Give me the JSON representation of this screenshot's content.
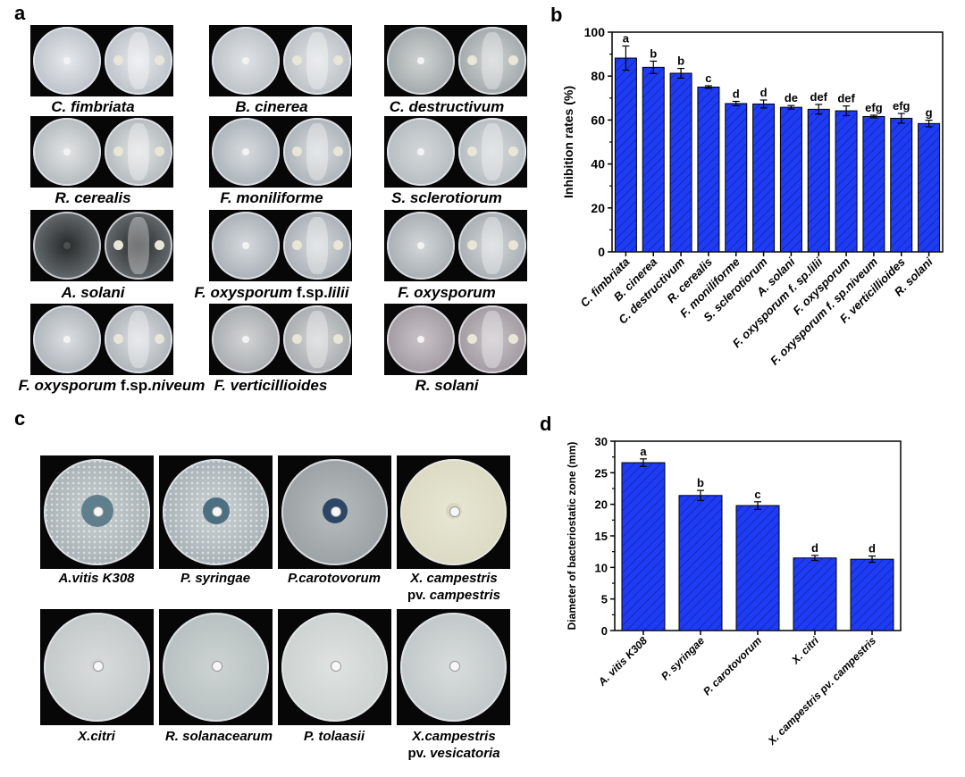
{
  "panels": {
    "a": "a",
    "b": "b",
    "c": "c",
    "d": "d"
  },
  "fungi_captions": [
    {
      "genus": "C.",
      "species": "fimbriata",
      "suffix": ""
    },
    {
      "genus": "B.",
      "species": "cinerea",
      "suffix": ""
    },
    {
      "genus": "C.",
      "species": "destructivum",
      "suffix": ""
    },
    {
      "genus": "R.",
      "species": "cerealis",
      "suffix": ""
    },
    {
      "genus": "F.",
      "species": "moniliforme",
      "suffix": ""
    },
    {
      "genus": "S.",
      "species": "sclerotiorum",
      "suffix": ""
    },
    {
      "genus": "A.",
      "species": "solani",
      "suffix": ""
    },
    {
      "genus": "F.",
      "species": "oxysporum",
      "suffix": "f.sp.",
      "forma": "lilii"
    },
    {
      "genus": "F.",
      "species": "oxysporum",
      "suffix": ""
    },
    {
      "genus": "F.",
      "species": "oxysporum",
      "suffix": "f.sp.",
      "forma": "niveum"
    },
    {
      "genus": "F.",
      "species": "verticillioides",
      "suffix": ""
    },
    {
      "genus": "R.",
      "species": "solani",
      "suffix": ""
    }
  ],
  "bacteria_captions": [
    {
      "line1": "A.vitis K308",
      "line2": ""
    },
    {
      "line1": "P. syringae",
      "line2": ""
    },
    {
      "line1": "P.carotovorum",
      "line2": ""
    },
    {
      "line1": "X. campestris",
      "line2_plain": "pv. ",
      "line2_italic": "campestris"
    },
    {
      "line1": "X.citri",
      "line2": ""
    },
    {
      "line1": "R. solanacearum",
      "line2": ""
    },
    {
      "line1": "P. tolaasii",
      "line2": ""
    },
    {
      "line1": "X.campestris",
      "line2_plain": "pv. ",
      "line2_italic": "vesicatoria"
    }
  ],
  "chart_data": [
    {
      "type": "bar",
      "panel": "b",
      "ylabel": "Inhibition rates (%)",
      "ylim": [
        0,
        100
      ],
      "yticks": [
        0,
        20,
        40,
        60,
        80,
        100
      ],
      "categories": [
        "C. fimbriata",
        "B. cinerea",
        "C. destructivum",
        "R. cerealis",
        "F. moniliforme",
        "S. sclerotiorum",
        "A. solani",
        "F. oxysporum f. sp.lilii",
        "F. oxysporum",
        "F. oxysporum f. sp.niveum",
        "F. verticillioides",
        "R. solani"
      ],
      "values": [
        88.2,
        84.0,
        81.3,
        75.0,
        67.5,
        67.3,
        65.8,
        64.9,
        64.2,
        61.6,
        60.8,
        58.4
      ],
      "errors": [
        5.5,
        2.8,
        2.2,
        0.6,
        1.0,
        1.8,
        0.8,
        2.2,
        2.2,
        0.6,
        2.2,
        1.5
      ],
      "letters": [
        "a",
        "b",
        "b",
        "c",
        "d",
        "d",
        "de",
        "def",
        "def",
        "efg",
        "efg",
        "g"
      ],
      "bar_color": "#1f3cf5"
    },
    {
      "type": "bar",
      "panel": "d",
      "ylabel": "Diameter of bacteriostatic zone (mm)",
      "ylim": [
        0,
        30
      ],
      "yticks": [
        0,
        5,
        10,
        15,
        20,
        25,
        30
      ],
      "categories": [
        "A. vitis K308",
        "P. syringae",
        "P. carotovorum",
        "X. citri",
        "X. campestris pv. campestris"
      ],
      "values": [
        26.6,
        21.4,
        19.8,
        11.5,
        11.3
      ],
      "errors": [
        0.6,
        0.8,
        0.6,
        0.4,
        0.5
      ],
      "letters": [
        "a",
        "b",
        "c",
        "d",
        "d"
      ],
      "bar_color": "#1f3cf5"
    }
  ]
}
